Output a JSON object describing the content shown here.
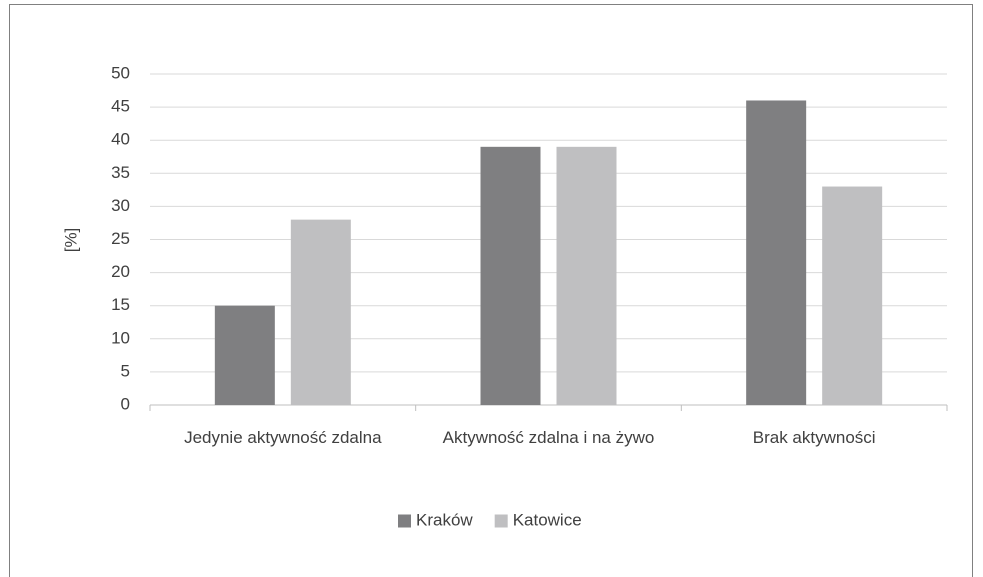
{
  "chart_data": {
    "type": "bar",
    "y_label": "[%]",
    "categories": [
      "Jedynie aktywność zdalna",
      "Aktywność zdalna i na żywo",
      "Brak aktywności"
    ],
    "series": [
      {
        "name": "Kraków",
        "color": "#7f7f81",
        "values": [
          15,
          39,
          46
        ]
      },
      {
        "name": "Katowice",
        "color": "#bfbfc1",
        "values": [
          28,
          39,
          33
        ]
      }
    ],
    "ylim": [
      0,
      50
    ],
    "yticks": [
      0,
      5,
      10,
      15,
      20,
      25,
      30,
      35,
      40,
      45,
      50
    ],
    "grid": true,
    "legend": "bottom"
  }
}
